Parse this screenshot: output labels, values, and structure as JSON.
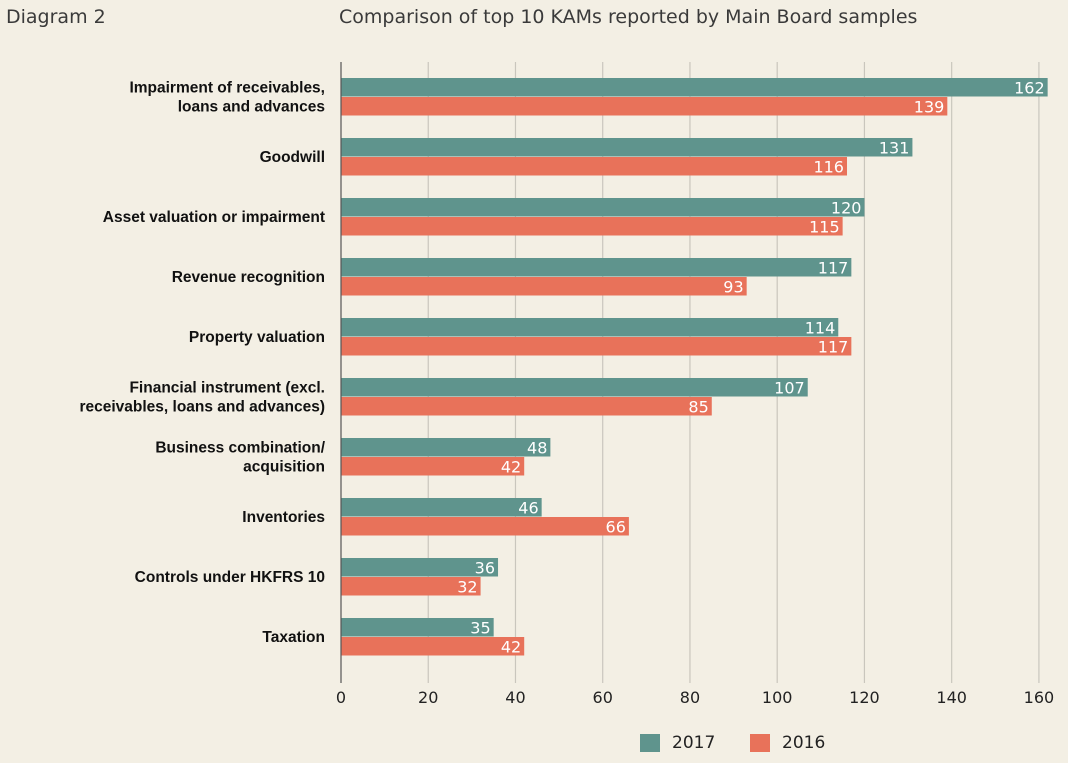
{
  "header": {
    "diagram_label": "Diagram 2",
    "title": "Comparison of top 10 KAMs reported by Main Board samples"
  },
  "colors": {
    "s2017": "#5f948d",
    "s2016": "#e8725a",
    "grid": "#c9c6bd",
    "background": "#f3efe4"
  },
  "chart_data": {
    "type": "bar",
    "orientation": "horizontal",
    "title": "Comparison of top 10 KAMs reported by Main Board samples",
    "categories": [
      [
        "Impairment of receivables,",
        "loans and advances"
      ],
      [
        "Goodwill"
      ],
      [
        "Asset valuation or impairment"
      ],
      [
        "Revenue recognition"
      ],
      [
        "Property valuation"
      ],
      [
        "Financial instrument (excl.",
        "receivables, loans and advances)"
      ],
      [
        "Business combination/",
        "acquisition"
      ],
      [
        "Inventories"
      ],
      [
        "Controls under HKFRS 10"
      ],
      [
        "Taxation"
      ]
    ],
    "series": [
      {
        "name": "2017",
        "values": [
          162,
          131,
          120,
          117,
          114,
          107,
          48,
          46,
          36,
          35
        ]
      },
      {
        "name": "2016",
        "values": [
          139,
          116,
          115,
          93,
          117,
          85,
          42,
          66,
          32,
          42
        ]
      }
    ],
    "xlim": [
      0,
      160
    ],
    "xticks": [
      0,
      20,
      40,
      60,
      80,
      100,
      120,
      140,
      160
    ],
    "grid": true,
    "legend_position": "bottom-center"
  }
}
